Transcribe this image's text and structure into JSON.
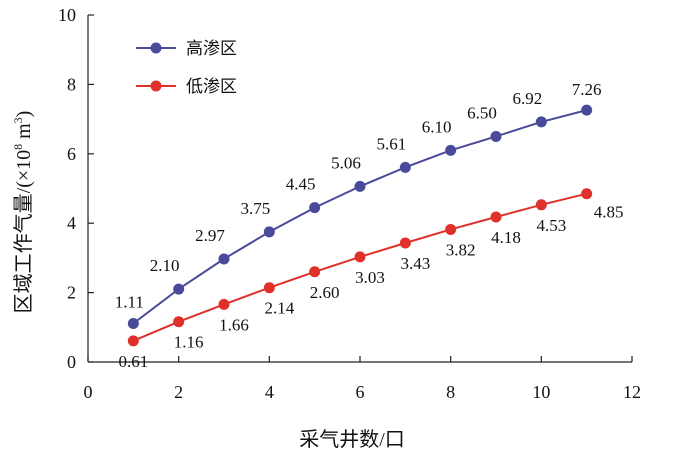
{
  "chart_data": {
    "type": "line",
    "title": "",
    "xlabel": "采气井数/口",
    "ylabel": "区域工作气量/(×10",
    "ylabel_sup1": "8",
    "ylabel_mid": " m",
    "ylabel_sup2": "3",
    "ylabel_end": ")",
    "xlim": [
      0,
      12
    ],
    "ylim": [
      0,
      10
    ],
    "xticks": [
      0,
      2,
      4,
      6,
      8,
      10,
      12
    ],
    "yticks": [
      0,
      2,
      4,
      6,
      8,
      10
    ],
    "grid": false,
    "legend_position": "top-left",
    "x": [
      1,
      2,
      3,
      4,
      5,
      6,
      7,
      8,
      9,
      10,
      11
    ],
    "series": [
      {
        "name": "高渗区",
        "color": "#4a4a9a",
        "values": [
          1.11,
          2.1,
          2.97,
          3.75,
          4.45,
          5.06,
          5.61,
          6.1,
          6.5,
          6.92,
          7.26
        ],
        "labels": [
          "1.11",
          "2.10",
          "2.97",
          "3.75",
          "4.45",
          "5.06",
          "5.61",
          "6.10",
          "6.50",
          "6.92",
          "7.26"
        ]
      },
      {
        "name": "低渗区",
        "color": "#e0302a",
        "values": [
          0.61,
          1.16,
          1.66,
          2.14,
          2.6,
          3.03,
          3.43,
          3.82,
          4.18,
          4.53,
          4.85
        ],
        "labels": [
          "0.61",
          "1.16",
          "1.66",
          "2.14",
          "2.60",
          "3.03",
          "3.43",
          "3.82",
          "4.18",
          "4.53",
          "4.85"
        ]
      }
    ]
  }
}
